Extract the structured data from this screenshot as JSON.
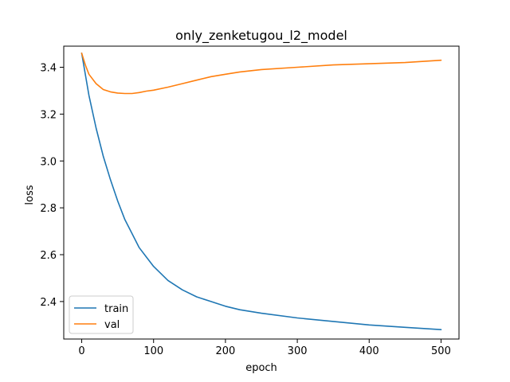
{
  "chart_data": {
    "type": "line",
    "title": "only_zenketugou_l2_model",
    "xlabel": "epoch",
    "ylabel": "loss",
    "xlim": [
      -25,
      525
    ],
    "ylim": [
      2.24,
      3.49
    ],
    "xticks": [
      0,
      100,
      200,
      300,
      400,
      500
    ],
    "yticks": [
      2.4,
      2.6,
      2.8,
      3.0,
      3.2,
      3.4
    ],
    "xtick_labels": [
      "0",
      "100",
      "200",
      "300",
      "400",
      "500"
    ],
    "ytick_labels": [
      "2.4",
      "2.6",
      "2.8",
      "3.0",
      "3.2",
      "3.4"
    ],
    "grid": false,
    "legend": {
      "placement": "lower-left"
    },
    "series": [
      {
        "name": "train",
        "color": "#1f77b4",
        "x": [
          0,
          10,
          20,
          30,
          40,
          50,
          60,
          70,
          80,
          90,
          100,
          120,
          140,
          160,
          180,
          200,
          220,
          250,
          300,
          350,
          400,
          450,
          500
        ],
        "y": [
          3.46,
          3.28,
          3.14,
          3.02,
          2.92,
          2.83,
          2.75,
          2.69,
          2.63,
          2.59,
          2.55,
          2.49,
          2.45,
          2.42,
          2.4,
          2.38,
          2.365,
          2.35,
          2.33,
          2.315,
          2.3,
          2.29,
          2.28
        ]
      },
      {
        "name": "val",
        "color": "#ff7f0e",
        "x": [
          0,
          5,
          10,
          20,
          30,
          40,
          50,
          60,
          70,
          80,
          90,
          100,
          120,
          140,
          160,
          180,
          200,
          220,
          250,
          300,
          350,
          400,
          450,
          500
        ],
        "y": [
          3.46,
          3.41,
          3.37,
          3.33,
          3.305,
          3.295,
          3.29,
          3.288,
          3.288,
          3.292,
          3.298,
          3.302,
          3.315,
          3.33,
          3.345,
          3.36,
          3.37,
          3.38,
          3.39,
          3.4,
          3.41,
          3.415,
          3.42,
          3.43
        ]
      }
    ]
  }
}
